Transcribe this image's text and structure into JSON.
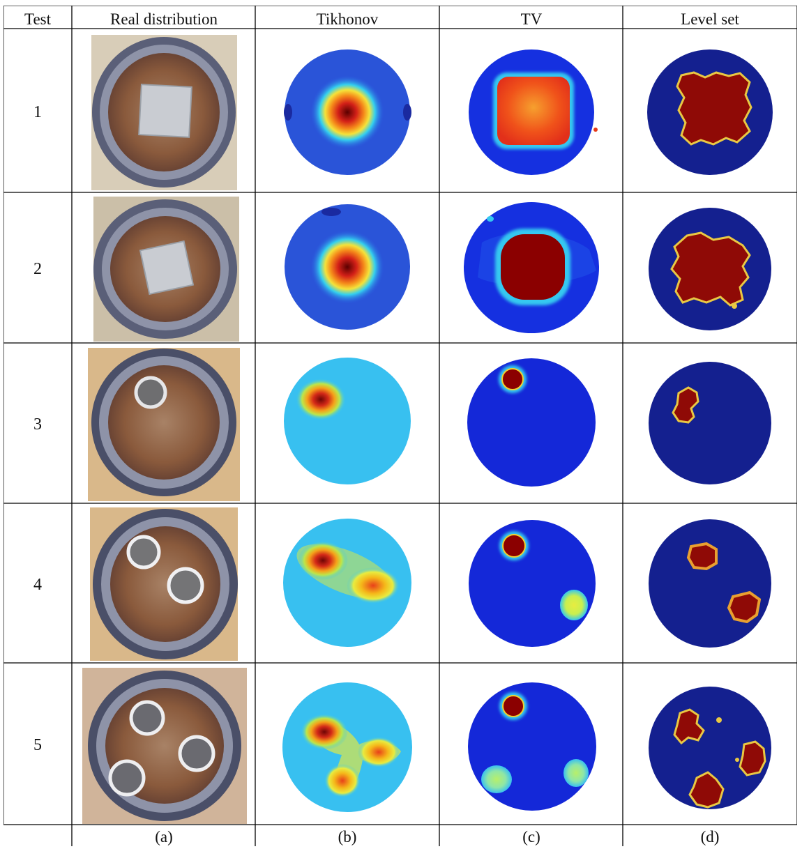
{
  "table": {
    "headers": [
      "Test",
      "Real distribution",
      "Tikhonov",
      "TV",
      "Level set"
    ],
    "tests": [
      "1",
      "2",
      "3",
      "4",
      "5"
    ],
    "sublabels": [
      "(a)",
      "(b)",
      "(c)",
      "(d)"
    ]
  },
  "colors": {
    "background_blue": "#2438d0",
    "deep_blue": "#0a1a8f",
    "cyan": "#30c8f0",
    "yellow": "#f5e23a",
    "orange": "#f07a1a",
    "red": "#b80e0e",
    "dark_red": "#8b0000",
    "photo_rim": "#5a5f78",
    "photo_water": "#8a5a3c",
    "photo_table": "#d9b88a",
    "metal": "#c9ccd2"
  },
  "panels": [
    {
      "row": 1,
      "photo": {
        "type": "square"
      },
      "tikhonov": {
        "center": "mid",
        "style": "square-blob"
      },
      "tv": {
        "center": "mid",
        "style": "square-flat"
      },
      "levelset": {
        "center": "mid",
        "style": "square-rough"
      }
    },
    {
      "row": 2,
      "photo": {
        "type": "square"
      },
      "tikhonov": {
        "center": "mid",
        "style": "square-blob"
      },
      "tv": {
        "center": "mid",
        "style": "square-flat"
      },
      "levelset": {
        "center": "mid",
        "style": "square-rough"
      }
    },
    {
      "row": 3,
      "photo": {
        "type": "one-ring"
      },
      "tikhonov": {
        "style": "one-blob"
      },
      "tv": {
        "style": "one-blob"
      },
      "levelset": {
        "style": "one-blob"
      }
    },
    {
      "row": 4,
      "photo": {
        "type": "two-rings"
      },
      "tikhonov": {
        "style": "two-blob"
      },
      "tv": {
        "style": "two-blob"
      },
      "levelset": {
        "style": "two-blob"
      }
    },
    {
      "row": 5,
      "photo": {
        "type": "three-rings"
      },
      "tikhonov": {
        "style": "three-blob"
      },
      "tv": {
        "style": "three-blob"
      },
      "levelset": {
        "style": "three-blob"
      }
    }
  ]
}
